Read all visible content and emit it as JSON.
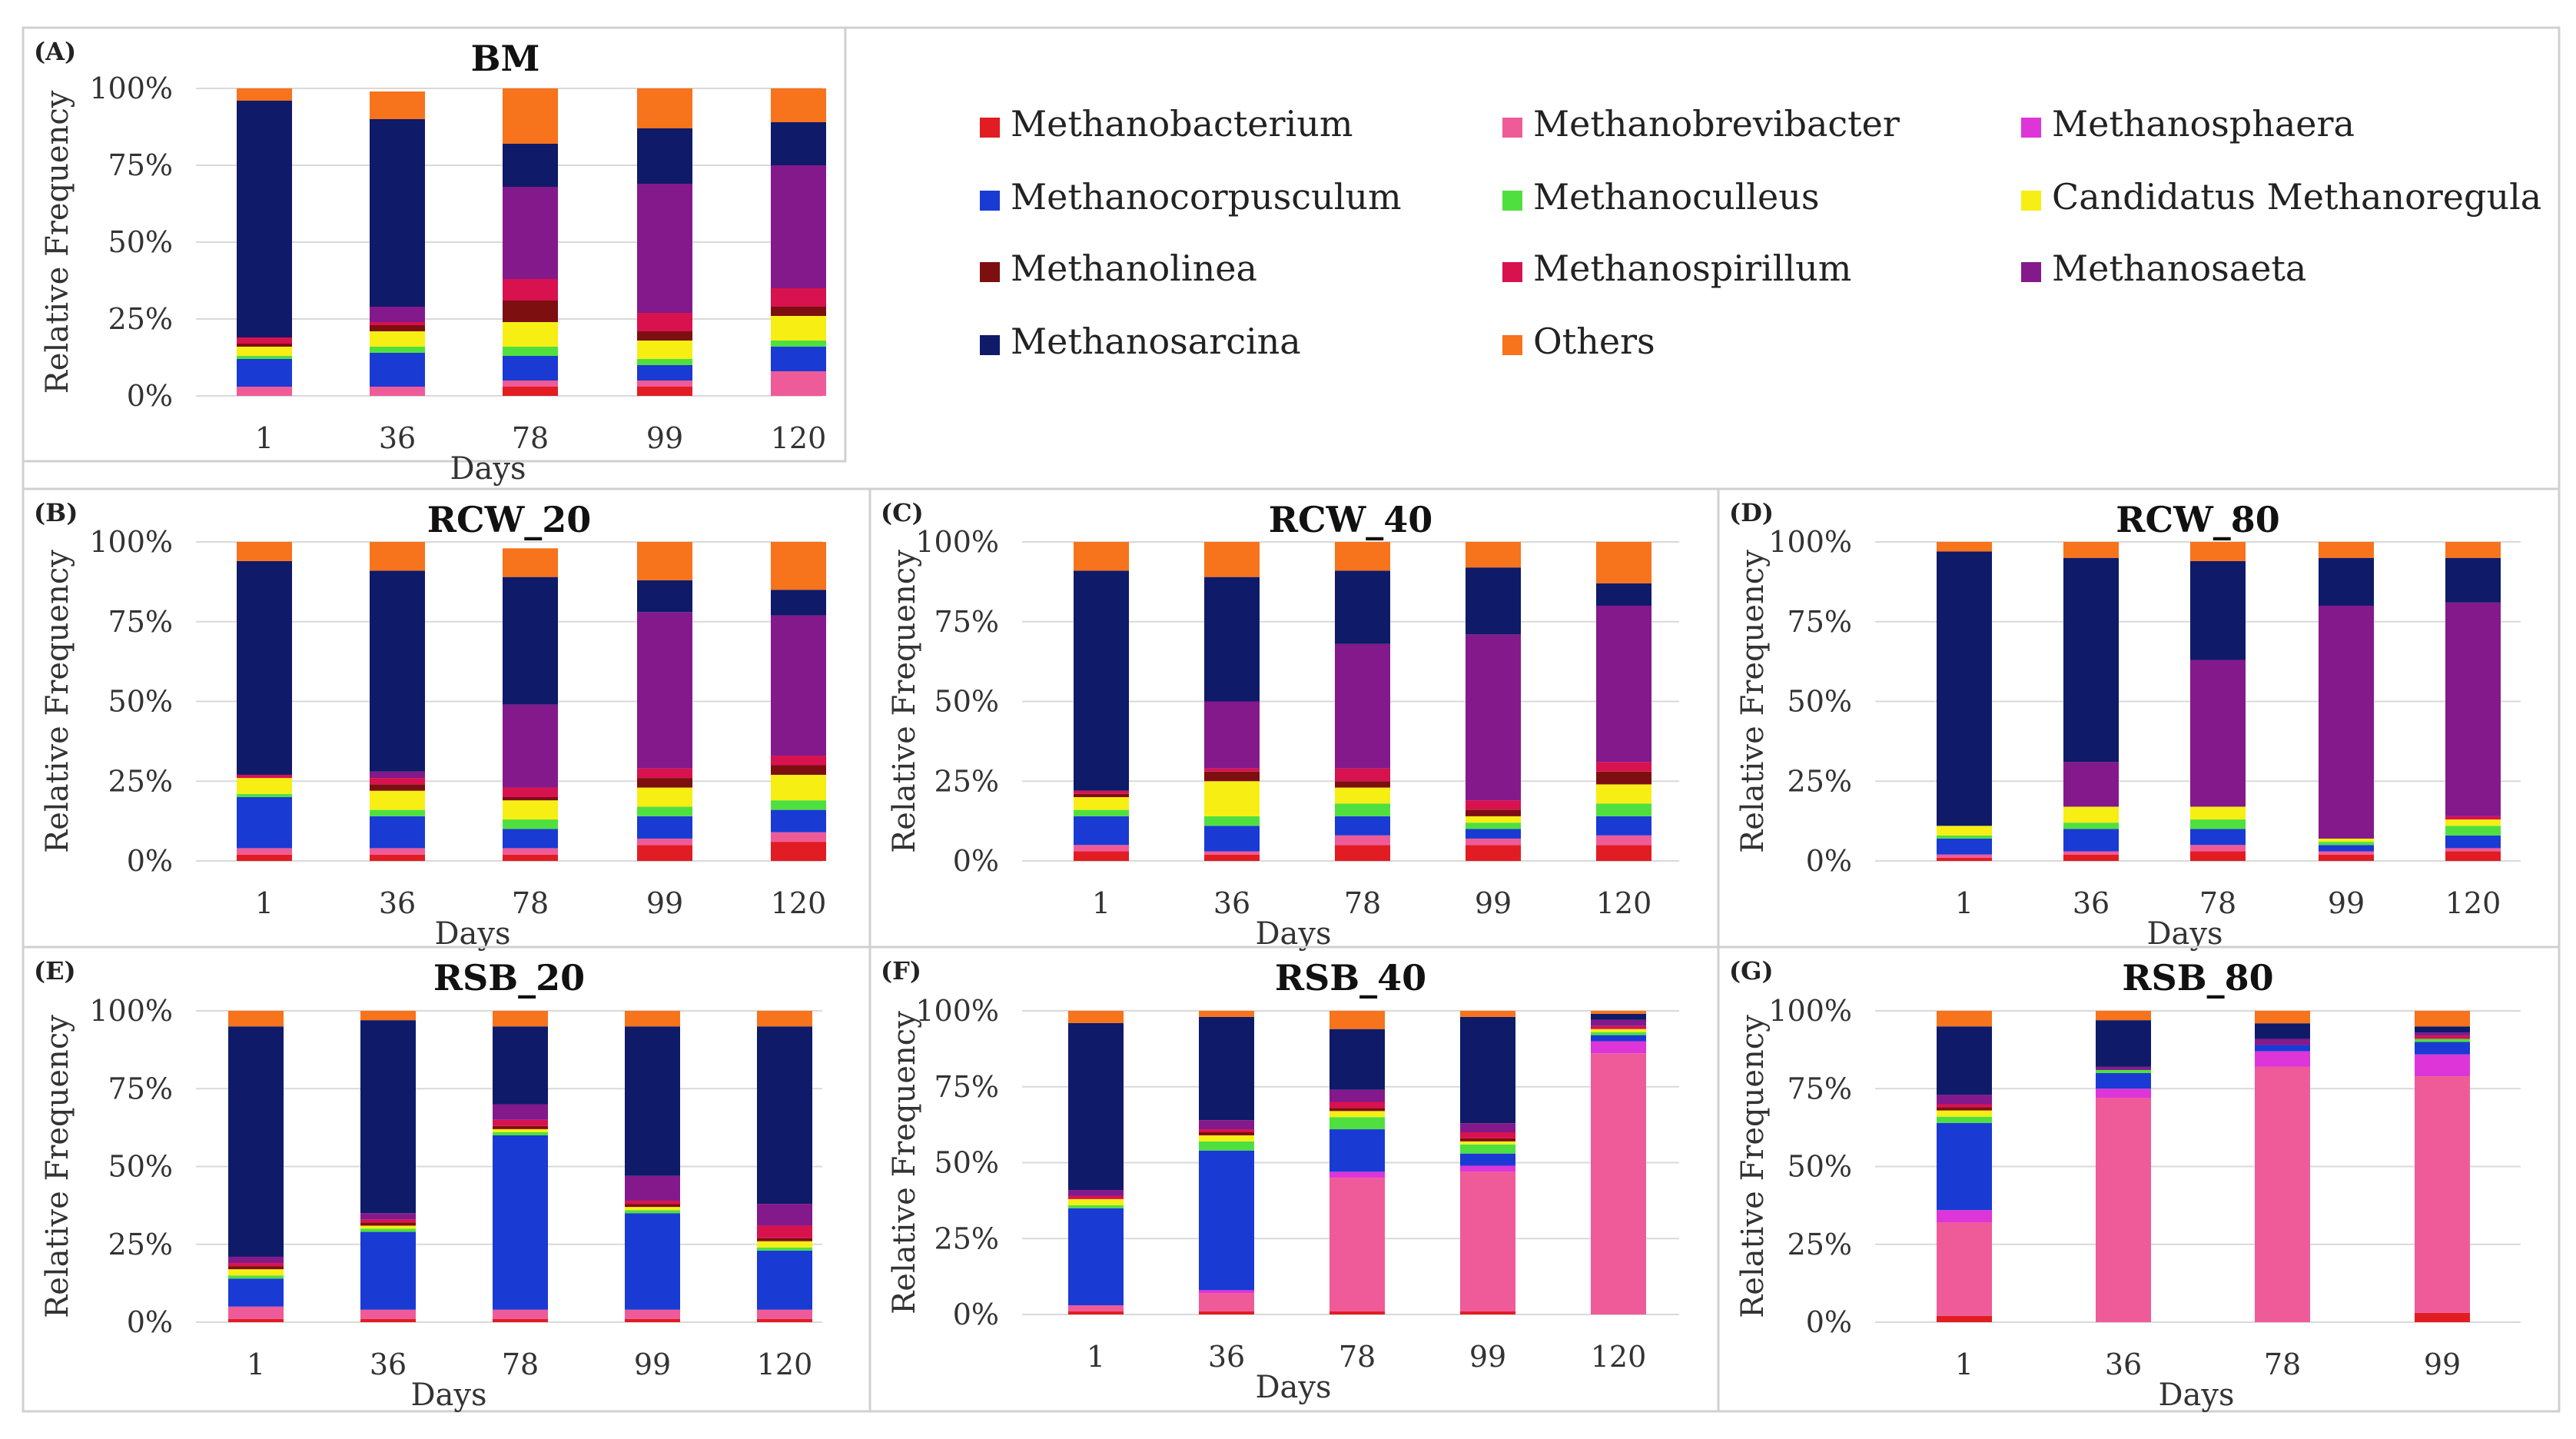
{
  "colors": {
    "Methanobacterium": "#e21c23",
    "Methanobrevibacter": "#ef5b98",
    "Methanosphaera": "#dd35d8",
    "Methanocorpusculum": "#1a3ad4",
    "Methanoculleus": "#4fe040",
    "Candidatus Methanoregula": "#f7ee14",
    "Methanolinea": "#7d0f10",
    "Methanospirillum": "#d8124e",
    "Methanosaeta": "#84198c",
    "Methanosarcina": "#0f1a68",
    "Others": "#f7731c"
  },
  "axis": {
    "ylabel": "Relative Frequency",
    "xlabel": "Days",
    "yticks": [
      "0%",
      "25%",
      "50%",
      "75%",
      "100%"
    ]
  },
  "legend": {
    "entries": [
      "Methanobacterium",
      "Methanobrevibacter",
      "Methanosphaera",
      "Methanocorpusculum",
      "Methanoculleus",
      "Candidatus Methanoregula",
      "Methanolinea",
      "Methanospirillum",
      "Methanosaeta",
      "Methanosarcina",
      "Others"
    ]
  },
  "chart_data": [
    {
      "type": "bar",
      "stacked": true,
      "panel": "(A)",
      "title": "BM",
      "xlabel": "Days",
      "ylabel": "Relative Frequency",
      "ylim": [
        0,
        100
      ],
      "categories": [
        "1",
        "36",
        "78",
        "99",
        "120"
      ],
      "stacks": [
        [
          0,
          3,
          0,
          9,
          1,
          3,
          1,
          2,
          0,
          77,
          4
        ],
        [
          0,
          3,
          0,
          11,
          2,
          5,
          2,
          1,
          5,
          61,
          9
        ],
        [
          3,
          2,
          0,
          8,
          3,
          8,
          7,
          7,
          30,
          14,
          18
        ],
        [
          3,
          2,
          0,
          5,
          2,
          6,
          3,
          6,
          42,
          18,
          13
        ],
        [
          0,
          8,
          0,
          8,
          2,
          8,
          3,
          6,
          40,
          14,
          11
        ]
      ]
    },
    {
      "type": "bar",
      "stacked": true,
      "panel": "(B)",
      "title": "RCW_20",
      "xlabel": "Days",
      "ylabel": "Relative Frequency",
      "ylim": [
        0,
        100
      ],
      "categories": [
        "1",
        "36",
        "78",
        "99",
        "120"
      ],
      "stacks": [
        [
          2,
          2,
          0,
          16,
          1,
          5,
          0,
          1,
          0,
          67,
          6
        ],
        [
          2,
          2,
          0,
          10,
          2,
          6,
          2,
          2,
          2,
          63,
          9
        ],
        [
          2,
          2,
          0,
          6,
          3,
          6,
          1,
          3,
          26,
          40,
          9
        ],
        [
          5,
          2,
          0,
          7,
          3,
          6,
          3,
          3,
          49,
          10,
          12
        ],
        [
          6,
          3,
          0,
          7,
          3,
          8,
          3,
          3,
          44,
          8,
          15
        ]
      ]
    },
    {
      "type": "bar",
      "stacked": true,
      "panel": "(C)",
      "title": "RCW_40",
      "xlabel": "Days",
      "ylabel": "Relative Frequency",
      "ylim": [
        0,
        100
      ],
      "categories": [
        "1",
        "36",
        "78",
        "99",
        "120"
      ],
      "stacks": [
        [
          3,
          2,
          0,
          9,
          2,
          4,
          1,
          1,
          0,
          69,
          9
        ],
        [
          2,
          1,
          0,
          8,
          3,
          11,
          3,
          1,
          21,
          39,
          11
        ],
        [
          5,
          3,
          0,
          6,
          4,
          5,
          2,
          4,
          39,
          23,
          9
        ],
        [
          5,
          2,
          0,
          3,
          2,
          2,
          2,
          3,
          52,
          21,
          8
        ],
        [
          5,
          3,
          0,
          6,
          4,
          6,
          4,
          3,
          49,
          7,
          13
        ]
      ]
    },
    {
      "type": "bar",
      "stacked": true,
      "panel": "(D)",
      "title": "RCW_80",
      "xlabel": "Days",
      "ylabel": "Relative Frequency",
      "ylim": [
        0,
        100
      ],
      "categories": [
        "1",
        "36",
        "78",
        "99",
        "120"
      ],
      "stacks": [
        [
          1,
          1,
          0,
          5,
          1,
          3,
          0,
          0,
          0,
          86,
          3
        ],
        [
          2,
          1,
          0,
          7,
          2,
          5,
          0,
          0,
          14,
          64,
          5
        ],
        [
          3,
          2,
          0,
          5,
          3,
          4,
          0,
          0,
          46,
          31,
          6
        ],
        [
          2,
          1,
          0,
          2,
          1,
          1,
          0,
          0,
          73,
          15,
          5
        ],
        [
          3,
          1,
          0,
          4,
          3,
          2,
          0,
          1,
          67,
          14,
          5
        ]
      ]
    },
    {
      "type": "bar",
      "stacked": true,
      "panel": "(E)",
      "title": "RSB_20",
      "xlabel": "Days",
      "ylabel": "Relative Frequency",
      "ylim": [
        0,
        100
      ],
      "categories": [
        "1",
        "36",
        "78",
        "99",
        "120"
      ],
      "stacks": [
        [
          1,
          4,
          0,
          9,
          1,
          2,
          1,
          1,
          2,
          74,
          5
        ],
        [
          1,
          3,
          0,
          25,
          1,
          1,
          1,
          1,
          2,
          62,
          3
        ],
        [
          1,
          3,
          0,
          56,
          1,
          1,
          1,
          2,
          5,
          25,
          5
        ],
        [
          1,
          3,
          0,
          31,
          1,
          1,
          1,
          1,
          8,
          48,
          5
        ],
        [
          1,
          3,
          0,
          19,
          1,
          2,
          1,
          4,
          7,
          57,
          5
        ]
      ]
    },
    {
      "type": "bar",
      "stacked": true,
      "panel": "(F)",
      "title": "RSB_40",
      "xlabel": "Days",
      "ylabel": "Relative Frequency",
      "ylim": [
        0,
        100
      ],
      "categories": [
        "1",
        "36",
        "78",
        "99",
        "120"
      ],
      "stacks": [
        [
          1,
          2,
          0,
          32,
          1,
          2,
          0,
          1,
          2,
          55,
          4
        ],
        [
          1,
          6,
          1,
          46,
          3,
          2,
          1,
          1,
          3,
          34,
          2
        ],
        [
          1,
          44,
          2,
          14,
          4,
          2,
          1,
          2,
          4,
          20,
          6
        ],
        [
          1,
          46,
          2,
          4,
          3,
          1,
          1,
          2,
          3,
          35,
          2
        ],
        [
          0,
          86,
          4,
          2,
          1,
          1,
          0,
          1,
          2,
          2,
          1
        ]
      ]
    },
    {
      "type": "bar",
      "stacked": true,
      "panel": "(G)",
      "title": "RSB_80",
      "xlabel": "Days",
      "ylabel": "Relative Frequency",
      "ylim": [
        0,
        100
      ],
      "categories": [
        "1",
        "36",
        "78",
        "99"
      ],
      "stacks": [
        [
          2,
          30,
          4,
          28,
          2,
          2,
          1,
          1,
          3,
          22,
          5
        ],
        [
          0,
          72,
          3,
          5,
          1,
          0,
          0,
          0,
          1,
          15,
          3
        ],
        [
          0,
          82,
          5,
          2,
          0,
          0,
          0,
          0,
          2,
          5,
          4
        ],
        [
          3,
          76,
          7,
          4,
          1,
          0,
          0,
          1,
          1,
          2,
          5
        ]
      ]
    }
  ]
}
